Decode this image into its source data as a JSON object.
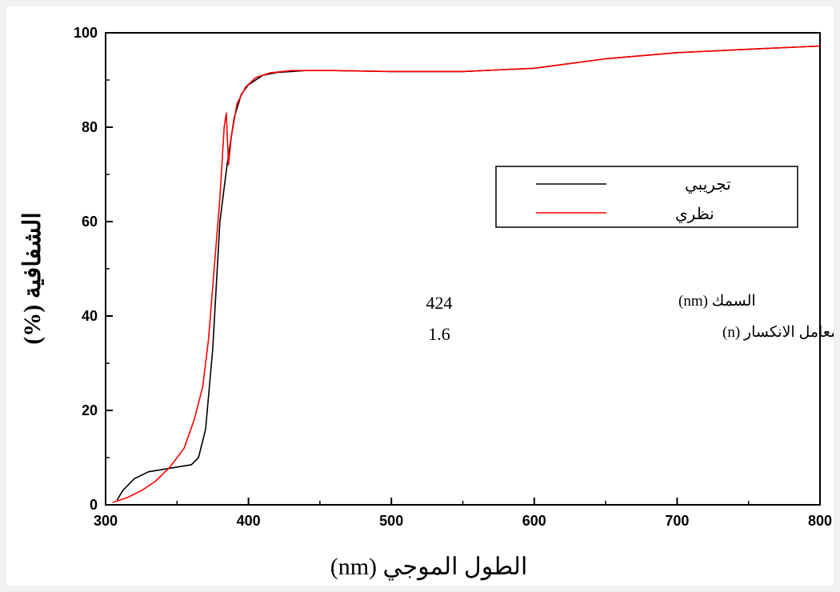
{
  "chart_data": {
    "type": "line",
    "xlabel": "الطول الموجي  (nm)",
    "ylabel": "الشفافية  (%)",
    "xlim": [
      300,
      800
    ],
    "ylim": [
      0,
      100
    ],
    "xticks": [
      "300",
      "400",
      "500",
      "600",
      "700",
      "800"
    ],
    "yticks": [
      "0",
      "20",
      "40",
      "60",
      "80",
      "100"
    ],
    "legend_position": "upper-right",
    "series": [
      {
        "name": "تجريبي",
        "color": "#000000",
        "x": [
          308,
          312,
          320,
          330,
          340,
          350,
          360,
          365,
          370,
          375,
          380,
          385,
          390,
          395,
          400,
          410,
          420,
          440,
          460,
          500,
          550,
          600,
          650,
          700,
          750,
          800
        ],
        "y": [
          1,
          3,
          5.5,
          7,
          7.5,
          8,
          8.5,
          10,
          16,
          33,
          60,
          72,
          82,
          87,
          89,
          91,
          91.6,
          92,
          92,
          91.8,
          91.8,
          92.5,
          94.5,
          95.8,
          96.5,
          97.2
        ]
      },
      {
        "name": "نظري",
        "color": "#ff0000",
        "x": [
          305,
          315,
          325,
          335,
          345,
          355,
          362,
          368,
          372,
          376,
          380,
          383,
          384.5,
          386,
          388,
          392,
          398,
          405,
          415,
          430,
          460,
          500,
          550,
          600,
          650,
          700,
          750,
          800
        ],
        "y": [
          0.5,
          1.5,
          3,
          5,
          8,
          12,
          18,
          25,
          35,
          50,
          65,
          80,
          83,
          72,
          78,
          85,
          88.5,
          90.5,
          91.5,
          92,
          92,
          91.8,
          91.8,
          92.5,
          94.5,
          95.8,
          96.5,
          97.2
        ]
      }
    ],
    "annotations": [
      {
        "label": "السمك (nm)",
        "value": "424"
      },
      {
        "label": "معامل الانكسار (n)",
        "value": "1.6"
      }
    ]
  }
}
